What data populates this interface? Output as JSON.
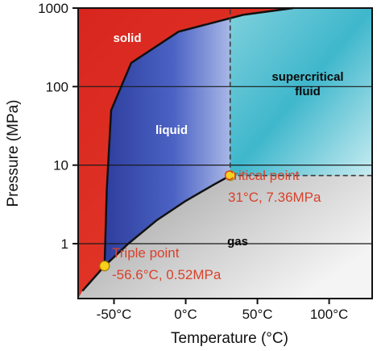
{
  "chart_data": {
    "type": "area",
    "title": "",
    "xlabel": "Temperature (°C)",
    "ylabel": "Pressure (MPa)",
    "xlim": [
      -75,
      130
    ],
    "ylim": [
      0.2,
      1000
    ],
    "yscale": "log",
    "grid": true,
    "x_ticks": [
      {
        "value": -50,
        "label": "-50°C"
      },
      {
        "value": 0,
        "label": "0°C"
      },
      {
        "value": 50,
        "label": "50°C"
      },
      {
        "value": 100,
        "label": "100°C"
      }
    ],
    "y_ticks": [
      {
        "value": 1,
        "label": "1"
      },
      {
        "value": 10,
        "label": "10"
      },
      {
        "value": 100,
        "label": "100"
      },
      {
        "value": 1000,
        "label": "1000"
      }
    ],
    "regions": [
      {
        "name": "solid",
        "label": "solid",
        "color": "#e02e24"
      },
      {
        "name": "liquid",
        "label": "liquid",
        "color": "#3a4fb2"
      },
      {
        "name": "supercritical",
        "label_lines": [
          "supercritical",
          "fluid"
        ],
        "color": "#5fc7d6"
      },
      {
        "name": "gas",
        "label": "gas",
        "color": "#bdbdbd"
      }
    ],
    "curves": {
      "melting": [
        {
          "x": -56.6,
          "y": 0.52
        },
        {
          "x": -55,
          "y": 5
        },
        {
          "x": -52,
          "y": 50
        },
        {
          "x": -38,
          "y": 200
        },
        {
          "x": -5,
          "y": 500
        },
        {
          "x": 40,
          "y": 820
        },
        {
          "x": 75,
          "y": 1000
        }
      ],
      "vaporization": [
        {
          "x": -72,
          "y": 0.25
        },
        {
          "x": -56.6,
          "y": 0.52
        },
        {
          "x": -40,
          "y": 1.0
        },
        {
          "x": -20,
          "y": 2.0
        },
        {
          "x": 0,
          "y": 3.5
        },
        {
          "x": 20,
          "y": 5.7
        },
        {
          "x": 31,
          "y": 7.36
        }
      ],
      "sublimation_start": {
        "x": -72,
        "y": 0.25
      }
    },
    "points": [
      {
        "name": "triple-point",
        "x": -56.6,
        "y": 0.52,
        "label_lines": [
          "Triple point",
          "-56.6°C, 0.52MPa"
        ]
      },
      {
        "name": "critical-point",
        "x": 31,
        "y": 7.36,
        "label_lines": [
          "Critical point",
          "31°C, 7.36MPa"
        ]
      }
    ],
    "reference_lines": [
      {
        "orientation": "vertical",
        "x": 31,
        "from_y": 7.36,
        "to_y": 1000,
        "style": "dashed"
      },
      {
        "orientation": "horizontal",
        "y": 7.36,
        "from_x": 31,
        "to_x": 130,
        "style": "dashed"
      }
    ]
  }
}
